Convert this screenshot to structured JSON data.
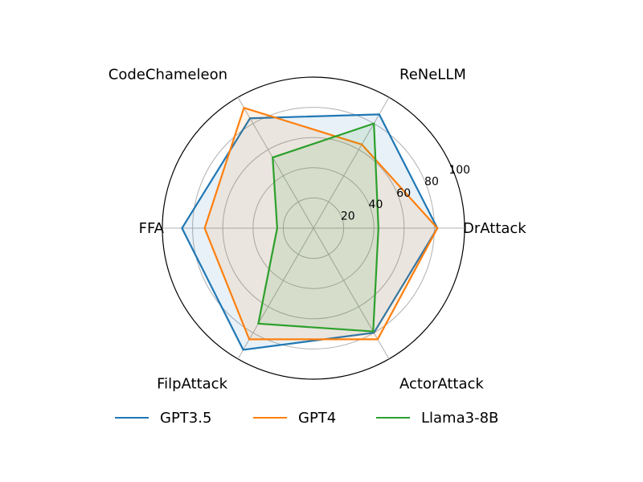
{
  "chart_data": {
    "type": "radar",
    "categories": [
      "DrAttack",
      "ReNeLLM",
      "CodeChameleon",
      "FFA",
      "FilpAttack",
      "ActorAttack"
    ],
    "r_ticks": [
      20,
      40,
      60,
      80,
      100
    ],
    "r_tick_labels": [
      "20",
      "40",
      "60",
      "80",
      "100"
    ],
    "rlim": [
      0,
      100
    ],
    "grid": true,
    "legend_position": "bottom",
    "series": [
      {
        "name": "GPT3.5",
        "color": "#1f77b4",
        "values": [
          82,
          87,
          84,
          87,
          93,
          80
        ]
      },
      {
        "name": "GPT4",
        "color": "#ff7f0e",
        "values": [
          82,
          64,
          92,
          72,
          85,
          85
        ]
      },
      {
        "name": "Llama3-8B",
        "color": "#2ca02c",
        "values": [
          43,
          80,
          54,
          24,
          73,
          79
        ]
      }
    ]
  }
}
